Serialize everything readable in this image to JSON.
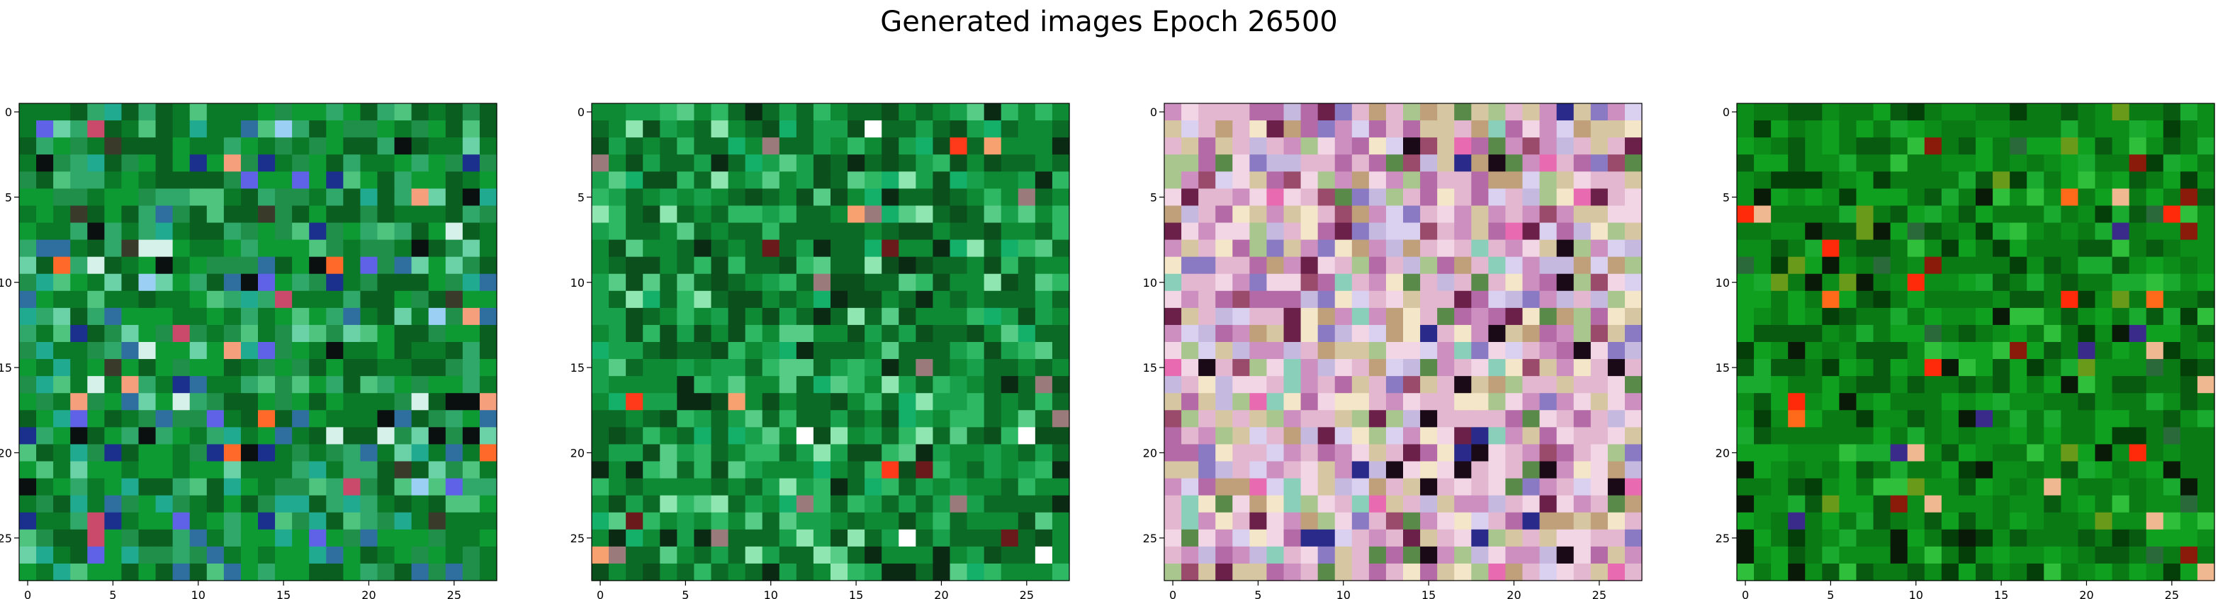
{
  "figure": {
    "title": "Generated images Epoch 26500"
  },
  "chart_data": [
    {
      "type": "heatmap",
      "title": "",
      "grid_size": [
        28,
        28
      ],
      "xlim": [
        -0.5,
        27.5
      ],
      "ylim": [
        27.5,
        -0.5
      ],
      "xticks": [
        0,
        5,
        10,
        15,
        20,
        25
      ],
      "yticks": [
        0,
        5,
        10,
        15,
        20,
        25
      ],
      "palette": [
        "#0a5e1f",
        "#0b7a28",
        "#0e9a33",
        "#1f8f4a",
        "#2fa86a",
        "#4fc47e",
        "#6ad2a6",
        "#20aa8f",
        "#2f6fa0",
        "#1b2f8c",
        "#5f62e6",
        "#9bd0f4",
        "#d6f1ea",
        "#ff6a2a",
        "#f59f7c",
        "#c94a6a",
        "#0a1010",
        "#3a3a2a"
      ],
      "weights": [
        20,
        22,
        18,
        14,
        10,
        6,
        3,
        5,
        4,
        2,
        2,
        1,
        1,
        1,
        1,
        1,
        2,
        1
      ],
      "seed": 11
    },
    {
      "type": "heatmap",
      "title": "",
      "grid_size": [
        28,
        28
      ],
      "xlim": [
        -0.5,
        27.5
      ],
      "ylim": [
        27.5,
        -0.5
      ],
      "xticks": [
        0,
        5,
        10,
        15,
        20,
        25
      ],
      "yticks": [
        0,
        5,
        10,
        15,
        20,
        25
      ],
      "palette": [
        "#0b6a25",
        "#0f8a34",
        "#18a04a",
        "#0a4f1c",
        "#2fb864",
        "#57cc86",
        "#8fe6b0",
        "#0b2a14",
        "#14b06a",
        "#ff3a1a",
        "#f7a070",
        "#ffffff",
        "#6a1a1a",
        "#9a7a7a"
      ],
      "weights": [
        24,
        22,
        14,
        10,
        10,
        6,
        3,
        4,
        4,
        1,
        1,
        1,
        1,
        1
      ],
      "seed": 23
    },
    {
      "type": "heatmap",
      "title": "",
      "grid_size": [
        28,
        28
      ],
      "xlim": [
        -0.5,
        27.5
      ],
      "ylim": [
        27.5,
        -0.5
      ],
      "xticks": [
        0,
        5,
        10,
        15,
        20,
        25
      ],
      "yticks": [
        0,
        5,
        10,
        15,
        20,
        25
      ],
      "palette": [
        "#e3b7cf",
        "#cc8fbf",
        "#b46aa6",
        "#d6c7a2",
        "#a9c68f",
        "#c6b9e0",
        "#8a7ac4",
        "#f2d6e6",
        "#6a2048",
        "#1a0a18",
        "#bfa07a",
        "#f4e6c8",
        "#5a8a4a",
        "#8acfb9",
        "#2a2a8a",
        "#e86ab0",
        "#9a4a6a",
        "#dad0f0"
      ],
      "weights": [
        16,
        12,
        8,
        10,
        6,
        8,
        4,
        8,
        3,
        3,
        5,
        6,
        2,
        2,
        1,
        2,
        3,
        5
      ],
      "seed": 37
    },
    {
      "type": "heatmap",
      "title": "",
      "grid_size": [
        28,
        28
      ],
      "xlim": [
        -0.5,
        27.5
      ],
      "ylim": [
        27.5,
        -0.5
      ],
      "xticks": [
        0,
        5,
        10,
        15,
        20,
        25
      ],
      "yticks": [
        0,
        5,
        10,
        15,
        20,
        25
      ],
      "palette": [
        "#0a7a14",
        "#0c8c18",
        "#0fa020",
        "#075a10",
        "#1aaa30",
        "#2fbf3a",
        "#043f0a",
        "#0a1a08",
        "#6a9a1a",
        "#ff2a0a",
        "#ff6a1a",
        "#8a1a0a",
        "#3a2a8a",
        "#f0b890",
        "#2a6a3a"
      ],
      "weights": [
        26,
        22,
        16,
        12,
        6,
        4,
        6,
        4,
        2,
        1,
        1,
        1,
        1,
        1,
        2
      ],
      "seed": 53
    }
  ]
}
